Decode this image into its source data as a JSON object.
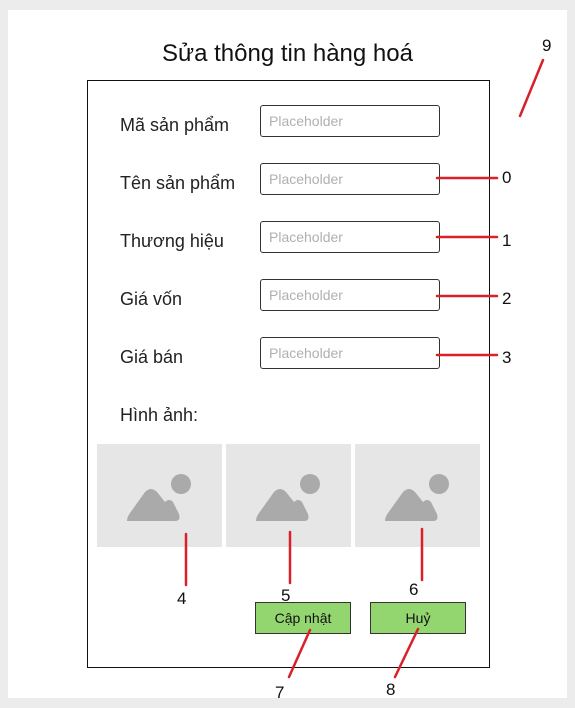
{
  "title": "Sửa thông tin hàng hoá",
  "fields": [
    {
      "label": "Mã sản phẩm",
      "placeholder": "Placeholder"
    },
    {
      "label": "Tên sản phẩm",
      "placeholder": "Placeholder"
    },
    {
      "label": "Thương hiệu",
      "placeholder": "Placeholder"
    },
    {
      "label": "Giá vốn",
      "placeholder": "Placeholder"
    },
    {
      "label": "Giá bán",
      "placeholder": "Placeholder"
    }
  ],
  "images_label": "Hình ảnh:",
  "images": [
    {
      "icon": "image-placeholder-icon"
    },
    {
      "icon": "image-placeholder-icon"
    },
    {
      "icon": "image-placeholder-icon"
    }
  ],
  "buttons": {
    "update": "Cập nhật",
    "cancel": "Huỷ"
  },
  "annotations": [
    "0",
    "1",
    "2",
    "3",
    "4",
    "5",
    "6",
    "7",
    "8",
    "9"
  ],
  "colors": {
    "button_fill": "#93d56f",
    "annotation_line": "#d9212a",
    "image_fill": "#e6e6e6",
    "image_icon": "#aaaaaa"
  }
}
